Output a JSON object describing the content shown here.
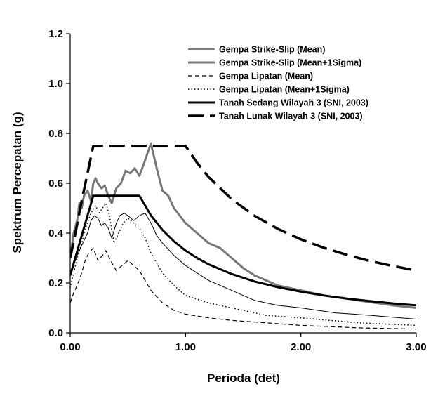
{
  "chart_data": {
    "type": "line",
    "title": "",
    "xlabel": "Perioda (det)",
    "ylabel": "Spektrum Percepatan (g)",
    "xlim": [
      0,
      3
    ],
    "ylim": [
      0,
      1.2
    ],
    "xticks": [
      0,
      1,
      2,
      3
    ],
    "xtick_labels": [
      "0.00",
      "1.00",
      "2.00",
      "3.00"
    ],
    "yticks": [
      0,
      0.2,
      0.4,
      0.6,
      0.8,
      1.0,
      1.2
    ],
    "ytick_labels": [
      "0.0",
      "0.2",
      "0.4",
      "0.6",
      "0.8",
      "1.0",
      "1.2"
    ],
    "grid": false,
    "legend_position": "top-right",
    "series": [
      {
        "name": "Gempa Strike-Slip (Mean)",
        "color": "#000000",
        "style": "thin-solid",
        "x": [
          0,
          0.03,
          0.06,
          0.09,
          0.12,
          0.15,
          0.18,
          0.21,
          0.24,
          0.27,
          0.3,
          0.33,
          0.36,
          0.4,
          0.43,
          0.47,
          0.5,
          0.55,
          0.6,
          0.65,
          0.7,
          0.75,
          0.8,
          0.9,
          1.0,
          1.1,
          1.2,
          1.4,
          1.6,
          1.8,
          2.0,
          2.3,
          2.6,
          3.0
        ],
        "y": [
          0.24,
          0.27,
          0.31,
          0.34,
          0.37,
          0.4,
          0.45,
          0.47,
          0.46,
          0.43,
          0.44,
          0.42,
          0.38,
          0.44,
          0.47,
          0.48,
          0.47,
          0.45,
          0.47,
          0.48,
          0.44,
          0.39,
          0.36,
          0.31,
          0.27,
          0.24,
          0.21,
          0.17,
          0.13,
          0.11,
          0.1,
          0.08,
          0.07,
          0.055
        ]
      },
      {
        "name": "Gempa Strike-Slip (Mean+1Sigma)",
        "color": "#777777",
        "style": "thick-solid",
        "x": [
          0,
          0.03,
          0.06,
          0.08,
          0.1,
          0.12,
          0.15,
          0.18,
          0.2,
          0.22,
          0.24,
          0.27,
          0.3,
          0.33,
          0.36,
          0.4,
          0.44,
          0.48,
          0.52,
          0.56,
          0.6,
          0.64,
          0.67,
          0.7,
          0.75,
          0.8,
          0.85,
          0.9,
          1.0,
          1.1,
          1.2,
          1.3,
          1.4,
          1.5,
          1.6,
          1.7,
          1.8,
          2.0,
          2.2,
          2.5,
          2.8,
          3.0
        ],
        "y": [
          0.3,
          0.4,
          0.45,
          0.52,
          0.5,
          0.55,
          0.57,
          0.53,
          0.6,
          0.62,
          0.6,
          0.58,
          0.59,
          0.55,
          0.52,
          0.58,
          0.6,
          0.65,
          0.64,
          0.66,
          0.63,
          0.68,
          0.72,
          0.76,
          0.66,
          0.57,
          0.55,
          0.5,
          0.44,
          0.4,
          0.36,
          0.34,
          0.3,
          0.26,
          0.23,
          0.21,
          0.19,
          0.17,
          0.15,
          0.13,
          0.11,
          0.1
        ]
      },
      {
        "name": "Gempa Lipatan (Mean)",
        "color": "#000000",
        "style": "thin-dashed",
        "x": [
          0,
          0.03,
          0.06,
          0.1,
          0.13,
          0.16,
          0.2,
          0.24,
          0.28,
          0.31,
          0.35,
          0.4,
          0.45,
          0.5,
          0.55,
          0.6,
          0.7,
          0.8,
          0.9,
          1.0,
          1.2,
          1.4,
          1.7,
          2.0,
          2.5,
          3.0
        ],
        "y": [
          0.12,
          0.16,
          0.19,
          0.24,
          0.29,
          0.32,
          0.34,
          0.29,
          0.31,
          0.33,
          0.29,
          0.25,
          0.27,
          0.29,
          0.27,
          0.25,
          0.17,
          0.12,
          0.09,
          0.075,
          0.06,
          0.05,
          0.04,
          0.03,
          0.02,
          0.015
        ]
      },
      {
        "name": "Gempa Lipatan (Mean+1Sigma)",
        "color": "#000000",
        "style": "dotted",
        "x": [
          0,
          0.03,
          0.06,
          0.1,
          0.14,
          0.18,
          0.22,
          0.25,
          0.28,
          0.31,
          0.34,
          0.38,
          0.42,
          0.46,
          0.5,
          0.55,
          0.6,
          0.65,
          0.7,
          0.8,
          0.9,
          1.0,
          1.2,
          1.4,
          1.7,
          2.0,
          2.5,
          3.0
        ],
        "y": [
          0.18,
          0.24,
          0.3,
          0.36,
          0.43,
          0.48,
          0.51,
          0.48,
          0.5,
          0.52,
          0.47,
          0.36,
          0.4,
          0.44,
          0.46,
          0.44,
          0.42,
          0.38,
          0.32,
          0.24,
          0.19,
          0.15,
          0.12,
          0.1,
          0.07,
          0.06,
          0.04,
          0.03
        ]
      },
      {
        "name": "Tanah Sedang Wilayah 3 (SNI, 2003)",
        "color": "#000000",
        "style": "thick-solid",
        "x": [
          0,
          0.05,
          0.1,
          0.15,
          0.2,
          0.3,
          0.4,
          0.5,
          0.6,
          0.7,
          0.8,
          0.9,
          1.0,
          1.1,
          1.2,
          1.4,
          1.6,
          1.8,
          2.0,
          2.2,
          2.4,
          2.6,
          2.8,
          3.0
        ],
        "y": [
          0.23,
          0.31,
          0.39,
          0.47,
          0.55,
          0.55,
          0.55,
          0.55,
          0.55,
          0.471,
          0.4125,
          0.367,
          0.33,
          0.3,
          0.275,
          0.236,
          0.206,
          0.183,
          0.165,
          0.15,
          0.1375,
          0.127,
          0.118,
          0.11
        ]
      },
      {
        "name": "Tanah Lunak Wilayah 3 (SNI, 2003)",
        "color": "#000000",
        "style": "thick-dashed",
        "x": [
          0,
          0.05,
          0.1,
          0.15,
          0.2,
          0.4,
          0.6,
          0.8,
          1.0,
          1.1,
          1.2,
          1.4,
          1.6,
          1.8,
          2.0,
          2.2,
          2.4,
          2.6,
          2.8,
          3.0
        ],
        "y": [
          0.3,
          0.41,
          0.53,
          0.64,
          0.75,
          0.75,
          0.75,
          0.75,
          0.75,
          0.682,
          0.625,
          0.536,
          0.469,
          0.417,
          0.375,
          0.341,
          0.3125,
          0.288,
          0.268,
          0.25
        ]
      }
    ]
  }
}
